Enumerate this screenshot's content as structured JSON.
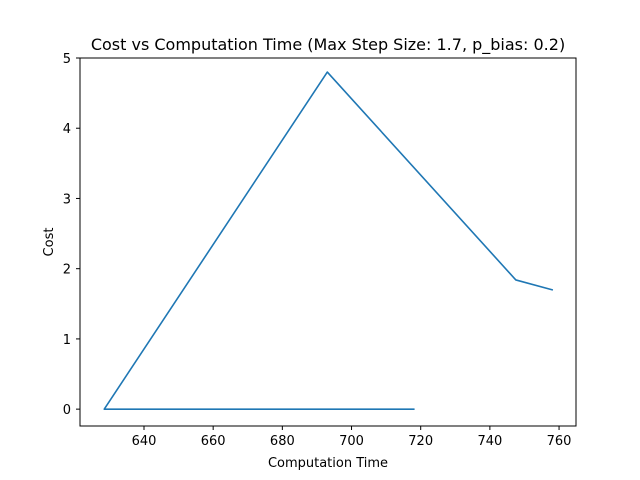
{
  "chart_data": {
    "type": "line",
    "title": "Cost vs Computation Time (Max Step Size: 1.7, p_bias: 0.2)",
    "xlabel": "Computation Time",
    "ylabel": "Cost",
    "xlim": [
      621.5,
      764.9
    ],
    "ylim": [
      -0.24,
      5.0
    ],
    "xticks": [
      640,
      660,
      680,
      700,
      720,
      740,
      760
    ],
    "yticks": [
      0,
      1,
      2,
      3,
      4,
      5
    ],
    "grid": false,
    "legend": "none",
    "series": [
      {
        "color": "#1f77b4",
        "x": [
          718,
          628.5,
          693,
          747.5,
          758
        ],
        "y": [
          0,
          0,
          4.8,
          1.84,
          1.7
        ]
      }
    ]
  }
}
